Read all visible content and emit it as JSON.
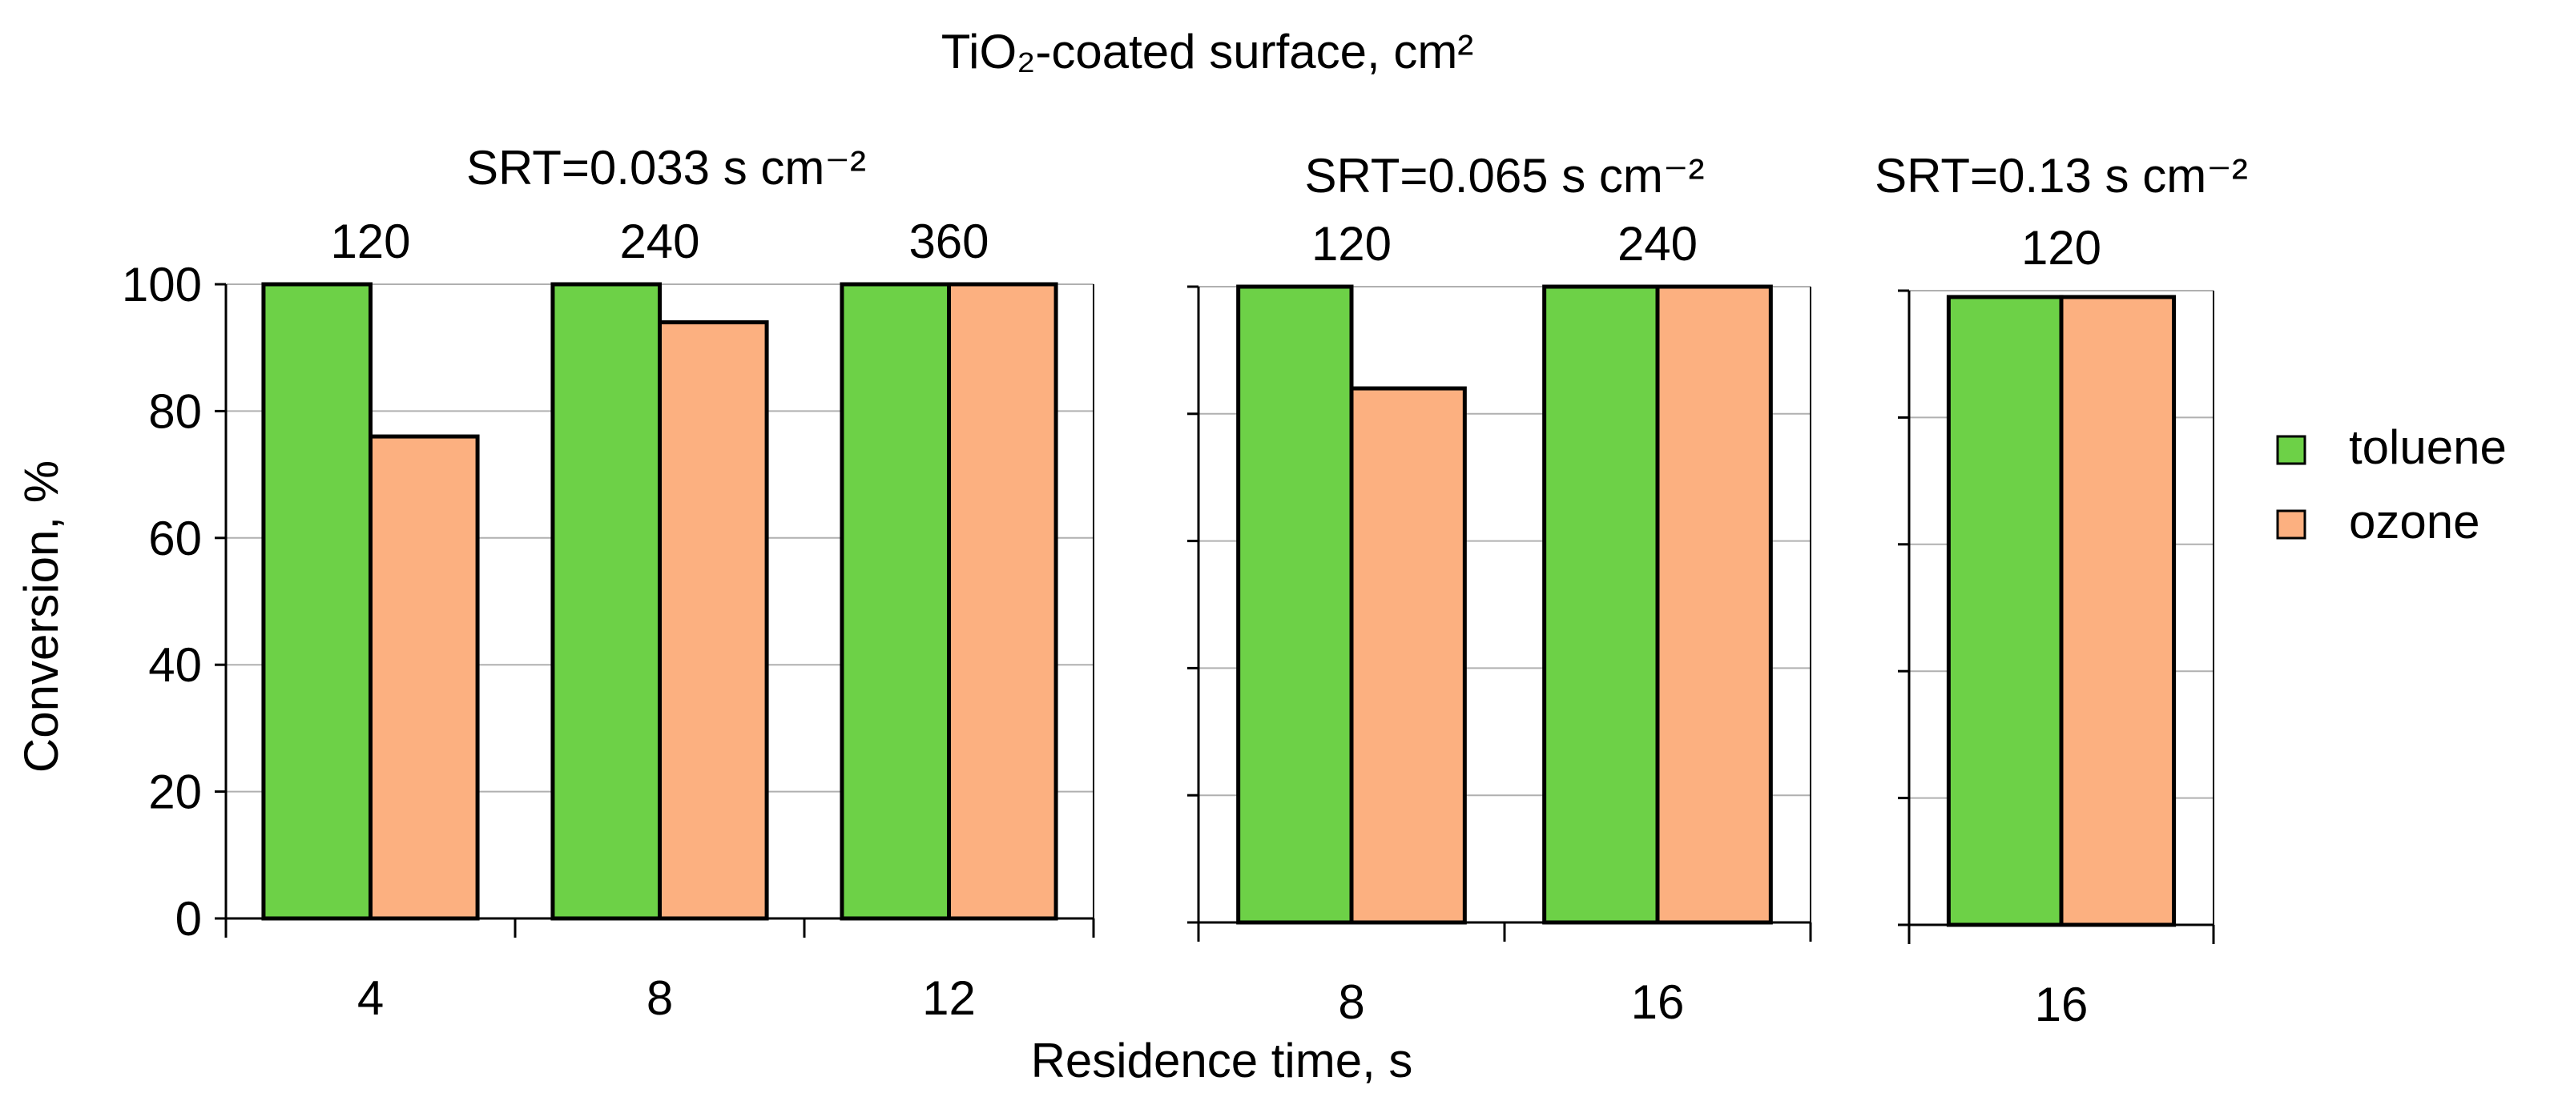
{
  "chart_data": {
    "type": "bar",
    "top_title": "TiO₂-coated surface, cm²",
    "ylabel": "Conversion, %",
    "xlabel": "Residence time, s",
    "ylim": [
      0,
      100
    ],
    "yticks": [
      0,
      20,
      40,
      60,
      80,
      100
    ],
    "series_names": [
      "toluene",
      "ozone"
    ],
    "colors": {
      "toluene": "#6dd147",
      "ozone": "#fcb080"
    },
    "legend_position": "right",
    "panels": [
      {
        "srt_label": "SRT=0.033 s cm⁻²",
        "groups": [
          {
            "residence_time": "4",
            "surface": "120",
            "toluene": 100,
            "ozone": 76
          },
          {
            "residence_time": "8",
            "surface": "240",
            "toluene": 100,
            "ozone": 94
          },
          {
            "residence_time": "12",
            "surface": "360",
            "toluene": 100,
            "ozone": 100
          }
        ]
      },
      {
        "srt_label": "SRT=0.065 s cm⁻²",
        "groups": [
          {
            "residence_time": "8",
            "surface": "120",
            "toluene": 100,
            "ozone": 84
          },
          {
            "residence_time": "16",
            "surface": "240",
            "toluene": 100,
            "ozone": 100
          }
        ]
      },
      {
        "srt_label": "SRT=0.13 s cm⁻²",
        "groups": [
          {
            "residence_time": "16",
            "surface": "120",
            "toluene": 99,
            "ozone": 99
          }
        ]
      }
    ]
  }
}
